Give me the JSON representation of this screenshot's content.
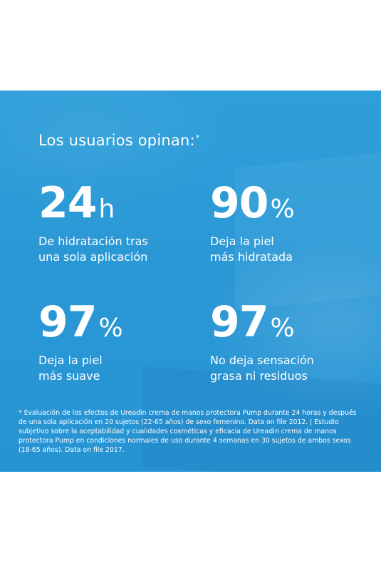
{
  "heading": {
    "text": "Los usuarios opinan:",
    "marker": "*"
  },
  "stats": [
    {
      "number": "24",
      "unit": "h",
      "line1": "De hidratación tras",
      "line2": "una sola aplicación"
    },
    {
      "number": "90",
      "unit": "%",
      "line1": "Deja la piel",
      "line2": "más hidratada"
    },
    {
      "number": "97",
      "unit": "%",
      "line1": "Deja la piel",
      "line2": "más suave"
    },
    {
      "number": "97",
      "unit": "%",
      "line1": "No deja sensación",
      "line2": "grasa ni residuos"
    }
  ],
  "footnote": "* Evaluación de los efectos de Ureadin crema de manos protectora Pump durante 24 horas y después de una sola aplicación en 20 sujetos (22-65 años) de sexo femenino. Data on file 2012. | Estudio subjetivo sobre la aceptabilidad y cualidades cosméticas y eficacia de Ureadin crema de manos protectora Pump en condiciones normales de uso durante 4 semanas en 30 sujetos de ambos sexos (18-65 años). Data on file 2017.",
  "colors": {
    "panel": "#2b98d6",
    "text": "#ffffff",
    "background": "#ffffff"
  }
}
